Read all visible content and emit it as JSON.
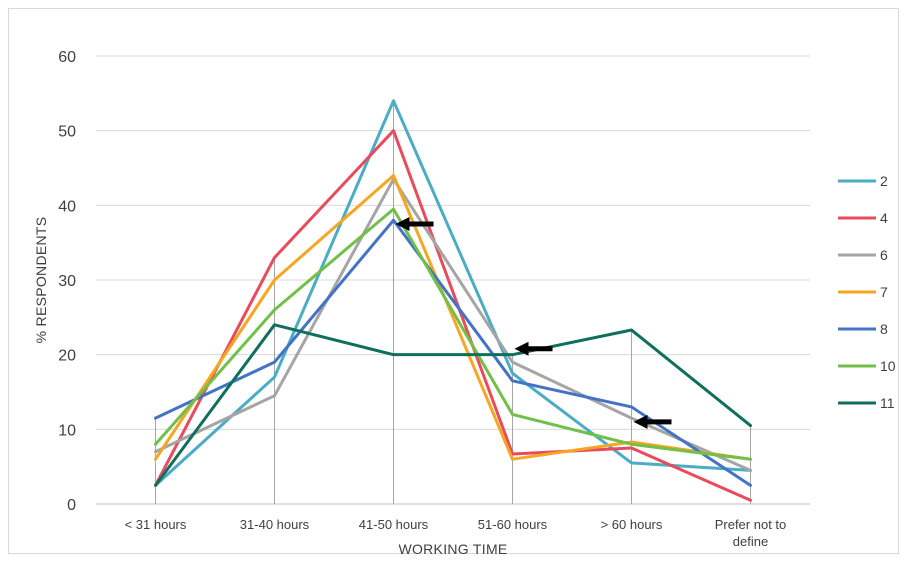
{
  "chart_data": {
    "type": "line",
    "xlabel": "WORKING TIME",
    "ylabel": "% RESPONDENTS",
    "ylim": [
      0,
      60
    ],
    "yticks": [
      0,
      10,
      20,
      30,
      40,
      50,
      60
    ],
    "grid": true,
    "legend_position": "right",
    "categories": [
      [
        "< 31 hours"
      ],
      [
        "31-40 hours"
      ],
      [
        "41-50 hours"
      ],
      [
        "51-60 hours"
      ],
      [
        "> 60 hours"
      ],
      [
        "Prefer not to",
        "define"
      ]
    ],
    "series": [
      {
        "name": "2",
        "color": "#4bacc6",
        "values": [
          2.5,
          17,
          54,
          17.5,
          5.5,
          4.5
        ]
      },
      {
        "name": "4",
        "color": "#e84c5c",
        "values": [
          2.5,
          33,
          50,
          6.7,
          7.5,
          0.5
        ]
      },
      {
        "name": "6",
        "color": "#a5a5a5",
        "values": [
          7,
          14.5,
          43.5,
          19,
          11.5,
          4.5
        ]
      },
      {
        "name": "7",
        "color": "#f6a623",
        "values": [
          6,
          30,
          44,
          6,
          8.3,
          6
        ]
      },
      {
        "name": "8",
        "color": "#4472c4",
        "values": [
          11.5,
          19,
          38,
          16.5,
          13,
          2.5
        ]
      },
      {
        "name": "10",
        "color": "#70c04a",
        "values": [
          8,
          26,
          39.5,
          12,
          8,
          6
        ]
      },
      {
        "name": "11",
        "color": "#0e6f5a",
        "values": [
          2.5,
          24,
          20,
          20,
          23.3,
          10.5
        ]
      }
    ],
    "annotations": [
      {
        "type": "arrow",
        "direction": "left",
        "x_category": 2,
        "y": 37.5
      },
      {
        "type": "arrow",
        "direction": "left",
        "x_category": 3,
        "y": 20.8
      },
      {
        "type": "arrow",
        "direction": "left",
        "x_category": 4,
        "y": 11
      }
    ]
  }
}
